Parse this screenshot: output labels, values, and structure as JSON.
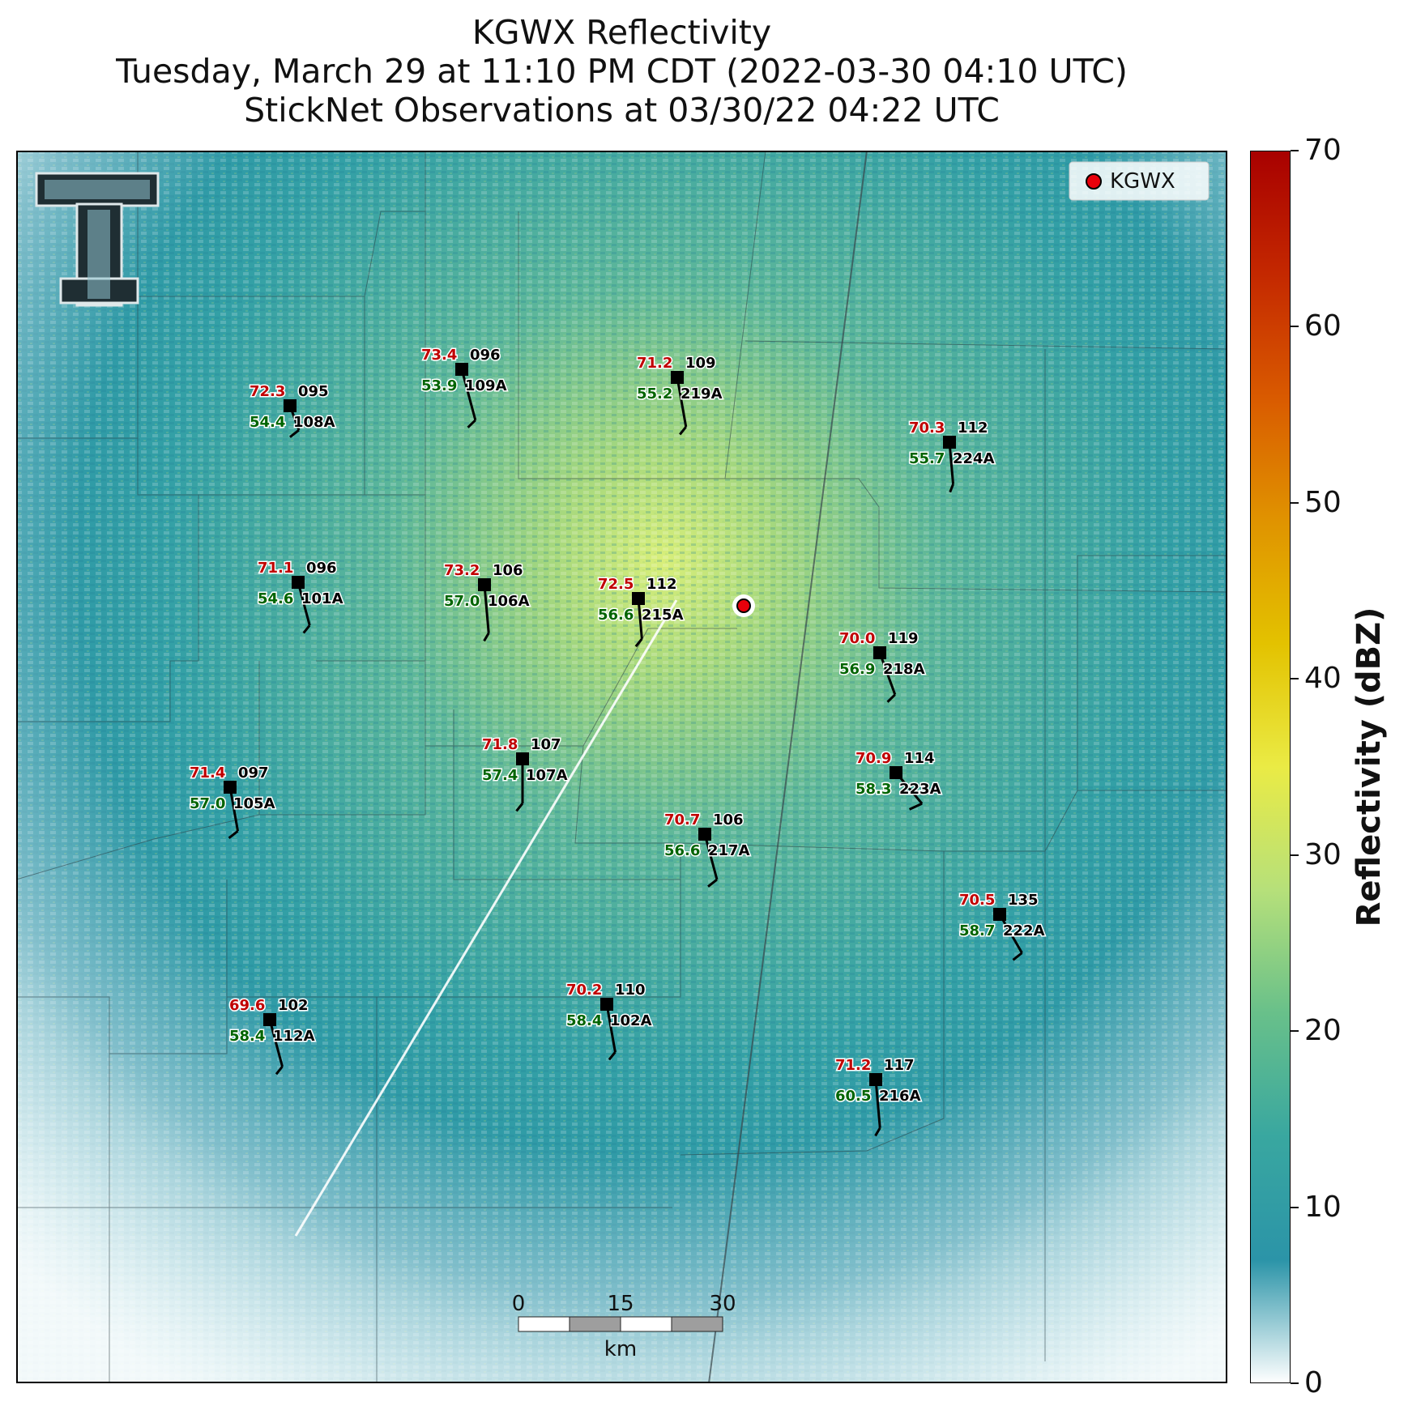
{
  "title": {
    "line1": "KGWX Reflectivity",
    "line2": "Tuesday, March 29 at 11:10 PM CDT (2022-03-30 04:10 UTC)",
    "line3": "StickNet Observations at 03/30/22 04:22 UTC"
  },
  "legend": {
    "label": "KGWX",
    "marker_color": "#e8000b"
  },
  "colorbar": {
    "label": "Reflectivity (dBZ)",
    "range": [
      0,
      70
    ],
    "ticks": [
      "0",
      "10",
      "20",
      "30",
      "40",
      "50",
      "60",
      "70"
    ],
    "stops": [
      "#ffffff",
      "#2b94a8",
      "#39a7a0",
      "#68c08a",
      "#b6e07a",
      "#eaeb45",
      "#e3c200",
      "#e09300",
      "#d95a00",
      "#c42800",
      "#a80000"
    ]
  },
  "scale_bar": {
    "labels": [
      "0",
      "15",
      "30"
    ],
    "unit": "km"
  },
  "stations": [
    {
      "id": "095",
      "name": "108A",
      "temp": "72.3",
      "dew": "54.4"
    },
    {
      "id": "096",
      "name": "109A",
      "temp": "73.4",
      "dew": "53.9"
    },
    {
      "id": "109",
      "name": "219A",
      "temp": "71.2",
      "dew": "55.2"
    },
    {
      "id": "112",
      "name": "224A",
      "temp": "70.3",
      "dew": "55.7"
    },
    {
      "id": "096",
      "name": "101A",
      "temp": "71.1",
      "dew": "54.6"
    },
    {
      "id": "106",
      "name": "106A",
      "temp": "73.2",
      "dew": "57.0"
    },
    {
      "id": "112",
      "name": "215A",
      "temp": "72.5",
      "dew": "56.6"
    },
    {
      "id": "119",
      "name": "218A",
      "temp": "70.0",
      "dew": "56.9"
    },
    {
      "id": "097",
      "name": "105A",
      "temp": "71.4",
      "dew": "57.0"
    },
    {
      "id": "107",
      "name": "107A",
      "temp": "71.8",
      "dew": "57.4"
    },
    {
      "id": "114",
      "name": "223A",
      "temp": "70.9",
      "dew": "58.3"
    },
    {
      "id": "106",
      "name": "217A",
      "temp": "70.7",
      "dew": "56.6"
    },
    {
      "id": "135",
      "name": "222A",
      "temp": "70.5",
      "dew": "58.7"
    },
    {
      "id": "102",
      "name": "112A",
      "temp": "69.6",
      "dew": "58.4"
    },
    {
      "id": "110",
      "name": "102A",
      "temp": "70.2",
      "dew": "58.4"
    },
    {
      "id": "117",
      "name": "216A",
      "temp": "71.2",
      "dew": "60.5"
    }
  ]
}
